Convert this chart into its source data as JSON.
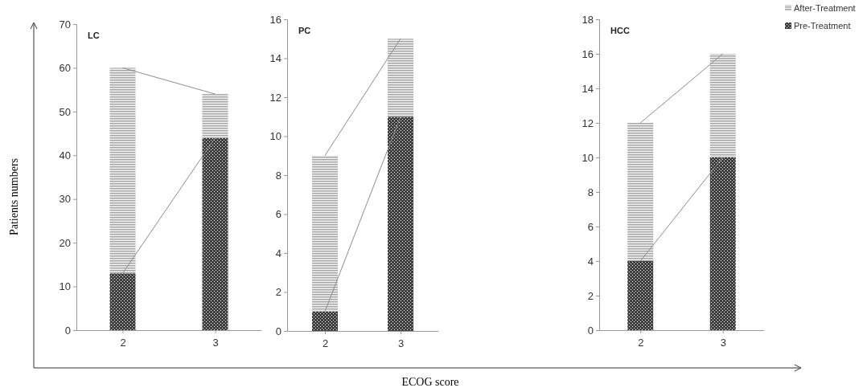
{
  "chart_data": [
    {
      "type": "bar",
      "title": "LC",
      "ylabel": "Patients numbers",
      "categories": [
        "2",
        "3"
      ],
      "stacked": true,
      "ylim": [
        0,
        70
      ],
      "yticks": [
        0,
        10,
        20,
        30,
        40,
        50,
        60,
        70
      ],
      "series": [
        {
          "color": "#404040",
          "values": [
            13,
            44
          ]
        },
        {
          "color": "#a6a6a6",
          "values": [
            47,
            10
          ]
        },
        {
          "type": "line",
          "color": "#8c8c8c",
          "values": [
            60,
            54
          ]
        },
        {
          "type": "line",
          "color": "#8c8c8c",
          "values": [
            13,
            44
          ]
        }
      ]
    },
    {
      "type": "bar",
      "title": "PC",
      "xlabel": "ECOG score",
      "categories": [
        "2",
        "3"
      ],
      "stacked": true,
      "ylim": [
        0,
        16
      ],
      "yticks": [
        0,
        2,
        4,
        6,
        8,
        10,
        12,
        14,
        16
      ],
      "series": [
        {
          "color": "#404040",
          "values": [
            1,
            11
          ]
        },
        {
          "color": "#a6a6a6",
          "values": [
            8,
            4
          ]
        },
        {
          "type": "line",
          "color": "#8c8c8c",
          "values": [
            9,
            15
          ]
        },
        {
          "type": "line",
          "color": "#8c8c8c",
          "values": [
            1,
            11
          ]
        }
      ]
    },
    {
      "type": "bar",
      "title": "HCC",
      "categories": [
        "2",
        "3"
      ],
      "stacked": true,
      "legend": "top right",
      "ylim": [
        0,
        18
      ],
      "yticks": [
        0,
        2,
        4,
        6,
        8,
        10,
        12,
        14,
        16,
        18
      ],
      "series": [
        {
          "name": "Pre-Treatment",
          "color": "#404040",
          "values": [
            4,
            10
          ]
        },
        {
          "name": "After-Treatment",
          "color": "#a6a6a6",
          "values": [
            8,
            6
          ]
        },
        {
          "type": "line",
          "color": "#8c8c8c",
          "values": [
            12,
            16
          ]
        },
        {
          "type": "line",
          "color": "#8c8c8c",
          "values": [
            4,
            10
          ]
        }
      ]
    }
  ]
}
